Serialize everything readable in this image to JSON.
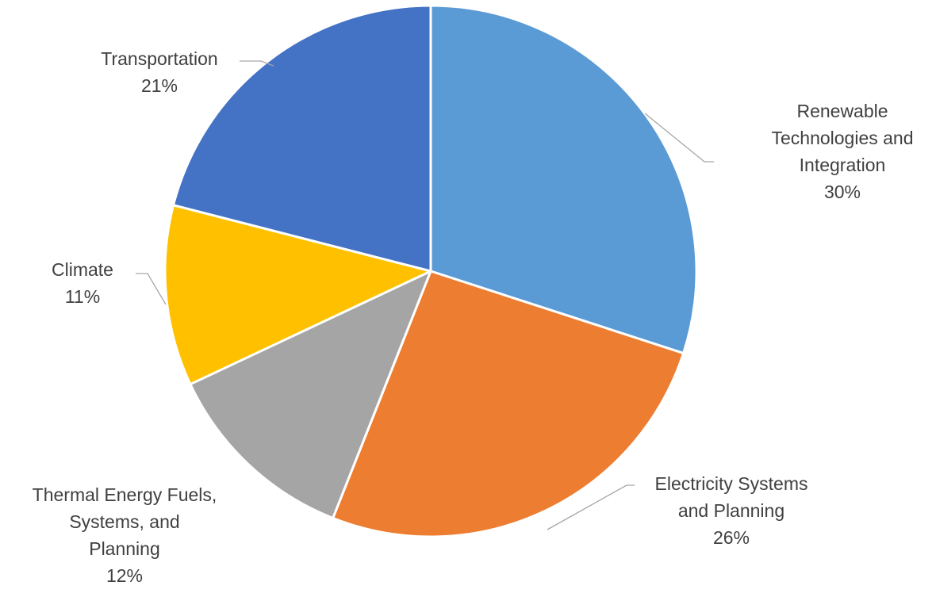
{
  "chart_data": {
    "type": "pie",
    "title": "",
    "start_angle_deg": 0,
    "direction": "clockwise",
    "legend": "none",
    "slices": [
      {
        "name": "Renewable Technologies and Integration",
        "label_lines": [
          "Renewable",
          "Technologies and",
          "Integration"
        ],
        "value_label": "30%",
        "value": 30,
        "color": "#5b9bd5"
      },
      {
        "name": "Electricity Systems and Planning",
        "label_lines": [
          "Electricity Systems",
          "and Planning"
        ],
        "value_label": "26%",
        "value": 26,
        "color": "#ed7d31"
      },
      {
        "name": "Thermal Energy Fuels, Systems, and Planning",
        "label_lines": [
          "Thermal Energy Fuels,",
          "Systems, and",
          "Planning"
        ],
        "value_label": "12%",
        "value": 12,
        "color": "#a5a5a5"
      },
      {
        "name": "Climate",
        "label_lines": [
          "Climate"
        ],
        "value_label": "11%",
        "value": 11,
        "color": "#ffc000"
      },
      {
        "name": "Transportation",
        "label_lines": [
          "Transportation"
        ],
        "value_label": "21%",
        "value": 21,
        "color": "#4472c4"
      }
    ]
  }
}
